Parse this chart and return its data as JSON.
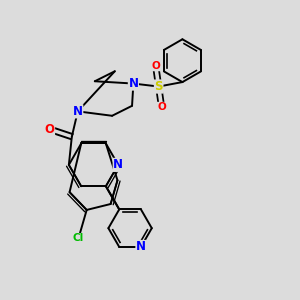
{
  "bg_color": "#dcdcdc",
  "bond_color": "#000000",
  "bond_width": 1.4,
  "atom_colors": {
    "N": "#0000ff",
    "O": "#ff0000",
    "S": "#cccc00",
    "Cl": "#00bb00"
  },
  "font_size": 7.5,
  "figsize": [
    3.0,
    3.0
  ],
  "dpi": 100
}
